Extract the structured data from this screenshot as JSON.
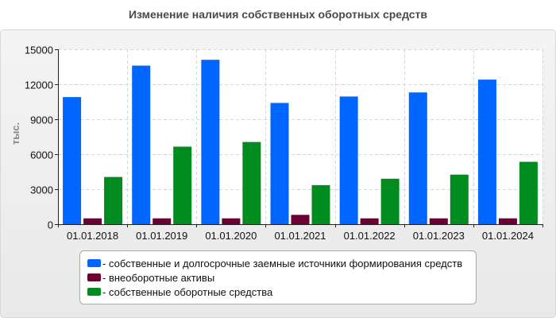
{
  "chart_data": {
    "type": "bar",
    "title": "Изменение наличия собственных оборотных средств",
    "ylabel": "тыс.",
    "xlabel": "",
    "ylim": [
      0,
      15000
    ],
    "yticks": [
      0,
      3000,
      6000,
      9000,
      12000,
      15000
    ],
    "grid": true,
    "legend_position": "bottom",
    "categories": [
      "01.01.2018",
      "01.01.2019",
      "01.01.2020",
      "01.01.2021",
      "01.01.2022",
      "01.01.2023",
      "01.01.2024"
    ],
    "series": [
      {
        "name": "- собственные и долгосрочные заемные источники формирования средств",
        "color": "#0066ff",
        "values": [
          10900,
          13600,
          14100,
          10400,
          10950,
          11300,
          12400
        ]
      },
      {
        "name": "- внеоборотные активы",
        "color": "#6b0033",
        "values": [
          500,
          500,
          500,
          800,
          500,
          500,
          500
        ]
      },
      {
        "name": "- собственные оборотные средства",
        "color": "#008c1e",
        "values": [
          4050,
          6650,
          7050,
          3350,
          3900,
          4250,
          5350
        ]
      }
    ]
  }
}
